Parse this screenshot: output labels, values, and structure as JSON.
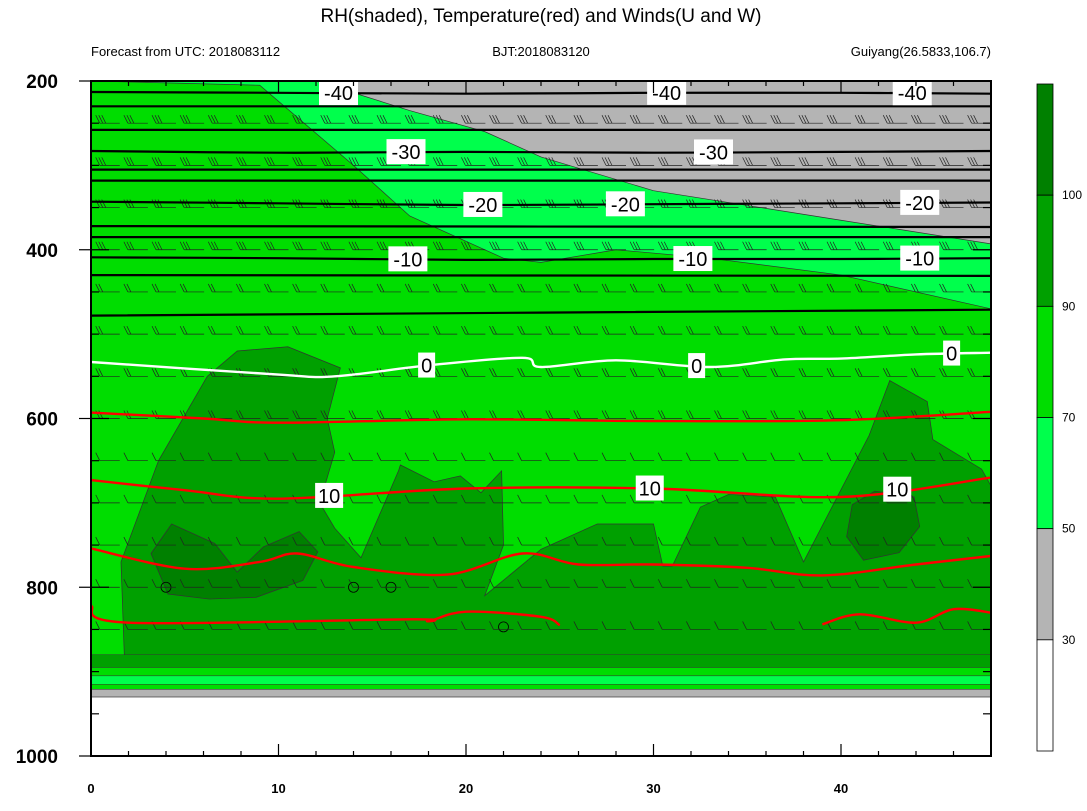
{
  "chart_data": {
    "type": "heatmap",
    "title": "RH(shaded), Temperature(red) and Winds(U and W)",
    "subtitle_left": "Forecast from UTC: 2018083112",
    "subtitle_center": "BJT:2018083120",
    "subtitle_right": "Guiyang(26.5833,106.7)",
    "xlabel": "",
    "ylabel": "",
    "xlim": [
      0,
      48
    ],
    "ylim": [
      200,
      1000
    ],
    "y_inverted": true,
    "x_ticks": [
      0,
      10,
      20,
      30,
      40
    ],
    "y_ticks": [
      200,
      400,
      600,
      800,
      1000
    ],
    "colorbar": {
      "levels": [
        30,
        50,
        70,
        90,
        100
      ],
      "labels": [
        "30",
        "50",
        "70",
        "90",
        "100"
      ],
      "colors": [
        "#ffffff",
        "#b4b4b4",
        "#00ff4c",
        "#00dd00",
        "#00a000",
        "#008000"
      ]
    },
    "rh_regions": [
      {
        "class": 1,
        "color": "#b4b4b4",
        "points": [
          [
            0,
            200
          ],
          [
            48,
            200
          ],
          [
            48,
            930
          ],
          [
            0,
            930
          ]
        ]
      },
      {
        "class": 2,
        "color": "#00ff4c",
        "points": [
          [
            0,
            200
          ],
          [
            12,
            200
          ],
          [
            17,
            235
          ],
          [
            21,
            260
          ],
          [
            24,
            290
          ],
          [
            30,
            330
          ],
          [
            40,
            365
          ],
          [
            48,
            393
          ],
          [
            48,
            530
          ],
          [
            0,
            530
          ]
        ]
      },
      {
        "class": 3,
        "color": "#00dd00",
        "points": [
          [
            0,
            200
          ],
          [
            9,
            205
          ],
          [
            14,
            300
          ],
          [
            17,
            360
          ],
          [
            22,
            410
          ],
          [
            24,
            415
          ],
          [
            28,
            400
          ],
          [
            33,
            410
          ],
          [
            40,
            430
          ],
          [
            48,
            470
          ],
          [
            48,
            915
          ],
          [
            0,
            915
          ]
        ]
      },
      {
        "class": 4,
        "color": "#00a000",
        "points": [
          [
            1.8,
            895
          ],
          [
            1.6,
            770
          ],
          [
            3.6,
            650
          ],
          [
            6.2,
            550
          ],
          [
            7.8,
            520
          ],
          [
            10.5,
            515
          ],
          [
            13.3,
            540
          ],
          [
            12.6,
            600
          ],
          [
            13,
            640
          ],
          [
            12.2,
            700
          ],
          [
            13,
            730
          ],
          [
            14.4,
            765
          ],
          [
            16.4,
            662
          ],
          [
            16.5,
            655
          ],
          [
            18.3,
            675
          ],
          [
            19.7,
            668
          ],
          [
            20.8,
            688
          ],
          [
            21.9,
            662
          ],
          [
            22,
            750
          ],
          [
            21,
            810
          ],
          [
            24,
            755
          ],
          [
            27,
            725
          ],
          [
            30,
            725
          ],
          [
            30.5,
            775
          ],
          [
            31,
            775
          ],
          [
            32.5,
            705
          ],
          [
            34,
            690
          ],
          [
            36.5,
            693
          ],
          [
            38,
            770
          ],
          [
            41.5,
            620
          ],
          [
            42.6,
            555
          ],
          [
            44.6,
            580
          ],
          [
            44.9,
            625
          ],
          [
            47.5,
            660
          ],
          [
            48,
            680
          ],
          [
            48,
            895
          ]
        ]
      },
      {
        "class": 5,
        "color": "#008000",
        "points": [
          [
            3.2,
            760
          ],
          [
            4.3,
            725
          ],
          [
            6.6,
            748
          ],
          [
            7.8,
            782
          ],
          [
            9.2,
            752
          ],
          [
            11.1,
            734
          ],
          [
            12.1,
            758
          ],
          [
            11.3,
            792
          ],
          [
            8.8,
            812
          ],
          [
            6.3,
            814
          ],
          [
            4.1,
            808
          ]
        ]
      },
      {
        "class": 5,
        "color": "#008000",
        "points": [
          [
            40.6,
            702
          ],
          [
            41.8,
            686
          ],
          [
            43.9,
            693
          ],
          [
            44.2,
            728
          ],
          [
            43.1,
            759
          ],
          [
            41.2,
            768
          ],
          [
            40.3,
            740
          ]
        ]
      }
    ],
    "rh_bands_lower": [
      {
        "color": "#00a000",
        "from": 880,
        "to": 895
      },
      {
        "color": "#00dd00",
        "from": 895,
        "to": 905
      },
      {
        "color": "#00ff4c",
        "from": 905,
        "to": 915
      },
      {
        "color": "#00dd00",
        "from": 915,
        "to": 921
      },
      {
        "color": "#b4b4b4",
        "from": 921,
        "to": 930
      }
    ],
    "temperature_contours": [
      {
        "value": -40,
        "label": "-40",
        "color": "#000000",
        "points": [
          [
            0,
            213
          ],
          [
            10,
            214
          ],
          [
            20,
            215
          ],
          [
            30,
            214
          ],
          [
            40,
            214
          ],
          [
            48,
            215
          ]
        ],
        "label_x": [
          13.2,
          30.7,
          43.8
        ]
      },
      {
        "value": -30,
        "label": "-30",
        "color": "#000000",
        "points": [
          [
            0,
            283
          ],
          [
            10,
            285
          ],
          [
            20,
            284
          ],
          [
            30,
            285
          ],
          [
            40,
            284
          ],
          [
            48,
            283
          ]
        ],
        "label_x": [
          16.8,
          33.2
        ]
      },
      {
        "value": -20,
        "label": "-20",
        "color": "#000000",
        "points": [
          [
            0,
            343
          ],
          [
            10,
            345
          ],
          [
            20,
            347
          ],
          [
            30,
            346
          ],
          [
            40,
            345
          ],
          [
            48,
            344
          ]
        ],
        "label_x": [
          20.9,
          28.5,
          44.2
        ]
      },
      {
        "value": -10,
        "label": "-10",
        "color": "#000000",
        "points": [
          [
            0,
            409
          ],
          [
            10,
            410
          ],
          [
            20,
            412
          ],
          [
            30,
            411
          ],
          [
            40,
            411
          ],
          [
            48,
            410
          ]
        ],
        "label_x": [
          16.9,
          32.1,
          44.2
        ]
      },
      {
        "value": 0,
        "label": "0",
        "color": "#ffffff",
        "points": [
          [
            0,
            533
          ],
          [
            10,
            548
          ],
          [
            13,
            550
          ],
          [
            18,
            537
          ],
          [
            23,
            528
          ],
          [
            24,
            539
          ],
          [
            28,
            531
          ],
          [
            33,
            539
          ],
          [
            37,
            530
          ],
          [
            40,
            529
          ],
          [
            44,
            524
          ],
          [
            48,
            522
          ]
        ],
        "label_x": [
          17.9,
          32.3,
          45.9
        ]
      },
      {
        "value": 5,
        "label": "",
        "color": "#ff0000",
        "points": [
          [
            0,
            593
          ],
          [
            6,
            600
          ],
          [
            10,
            605
          ],
          [
            20,
            601
          ],
          [
            30,
            603
          ],
          [
            40,
            602
          ],
          [
            48,
            592
          ]
        ],
        "label_x": []
      },
      {
        "value": 10,
        "label": "10",
        "color": "#ff0000",
        "points": [
          [
            0,
            673
          ],
          [
            5,
            685
          ],
          [
            10,
            695
          ],
          [
            20,
            683
          ],
          [
            30,
            683
          ],
          [
            40,
            693
          ],
          [
            48,
            670
          ]
        ],
        "label_x": [
          12.7,
          29.8,
          43.0
        ]
      },
      {
        "value": 15,
        "label": "",
        "color": "#ff0000",
        "points": [
          [
            0,
            754
          ],
          [
            5,
            778
          ],
          [
            9,
            770
          ],
          [
            11,
            760
          ],
          [
            14,
            776
          ],
          [
            19,
            785
          ],
          [
            23,
            760
          ],
          [
            26,
            773
          ],
          [
            30,
            773
          ],
          [
            35,
            777
          ],
          [
            39,
            786
          ],
          [
            44,
            773
          ],
          [
            48,
            763
          ]
        ],
        "label_x": []
      },
      {
        "value": 20,
        "label": "",
        "color": "#ff0000",
        "points": [
          [
            0,
            822
          ],
          [
            2,
            842
          ],
          [
            17,
            838
          ],
          [
            18,
            840
          ],
          [
            20,
            829
          ],
          [
            24,
            835
          ],
          [
            25,
            845
          ]
        ],
        "label_x": []
      },
      {
        "value": 20,
        "label": "",
        "color": "#ff0000",
        "points": [
          [
            39,
            844
          ],
          [
            41,
            832
          ],
          [
            44,
            842
          ],
          [
            46,
            826
          ],
          [
            48,
            830
          ]
        ],
        "label_x": []
      }
    ],
    "flat_lines": [
      {
        "color": "#000000",
        "points": [
          [
            0,
            230
          ],
          [
            48,
            230
          ]
        ]
      },
      {
        "color": "#000000",
        "points": [
          [
            0,
            258
          ],
          [
            48,
            258
          ]
        ]
      },
      {
        "color": "#000000",
        "points": [
          [
            0,
            305
          ],
          [
            48,
            305
          ]
        ]
      },
      {
        "color": "#000000",
        "points": [
          [
            0,
            318
          ],
          [
            48,
            318
          ]
        ]
      },
      {
        "color": "#000000",
        "points": [
          [
            0,
            372
          ],
          [
            48,
            373
          ]
        ]
      },
      {
        "color": "#000000",
        "points": [
          [
            0,
            385
          ],
          [
            48,
            385
          ]
        ]
      },
      {
        "color": "#000000",
        "points": [
          [
            0,
            430
          ],
          [
            48,
            431
          ]
        ]
      },
      {
        "color": "#000000",
        "points": [
          [
            0,
            478
          ],
          [
            48,
            471
          ]
        ]
      }
    ],
    "calm_markers": [
      [
        4,
        800
      ],
      [
        14,
        800
      ],
      [
        16,
        800
      ],
      [
        22,
        847
      ]
    ],
    "wind_levels": [
      200,
      250,
      300,
      350,
      400,
      450,
      500,
      550,
      600,
      650,
      700,
      750,
      800,
      850
    ]
  }
}
